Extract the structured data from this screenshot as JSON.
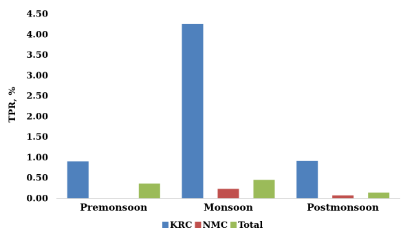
{
  "chart_data": {
    "type": "bar",
    "title": "",
    "xlabel": "",
    "ylabel": "TPR, %",
    "ylim": [
      0,
      4.5
    ],
    "yticks": [
      "0.00",
      "0.50",
      "1.00",
      "1.50",
      "2.00",
      "2.50",
      "3.00",
      "3.50",
      "4.00",
      "4.50"
    ],
    "categories": [
      "Premonsoon",
      "Monsoon",
      "Postmonsoon"
    ],
    "series": [
      {
        "name": "KRC",
        "color": "#4F81BD",
        "values": [
          0.9,
          4.25,
          0.91
        ]
      },
      {
        "name": "NMC",
        "color": "#C0504D",
        "values": [
          0.0,
          0.23,
          0.07
        ]
      },
      {
        "name": "Total",
        "color": "#9BBB59",
        "values": [
          0.36,
          0.45,
          0.14
        ]
      }
    ],
    "grid": false,
    "legend_position": "bottom"
  }
}
